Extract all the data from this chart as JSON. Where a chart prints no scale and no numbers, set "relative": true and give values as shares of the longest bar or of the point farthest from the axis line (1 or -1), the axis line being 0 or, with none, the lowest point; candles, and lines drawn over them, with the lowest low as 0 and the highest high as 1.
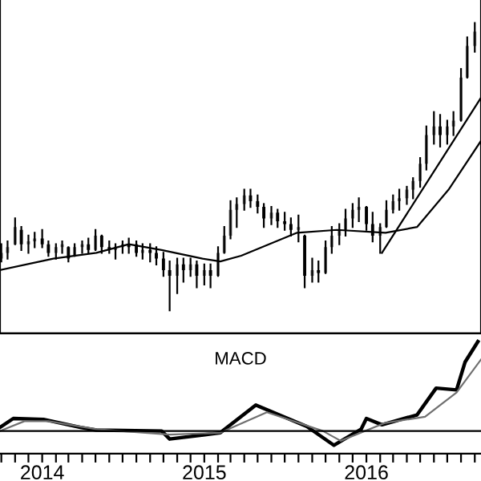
{
  "chart_data": [
    {
      "type": "candlestick",
      "relative": true,
      "tick_labels": false,
      "xlim": [
        "2013-09-28",
        "2016-09-15"
      ],
      "x": [
        "2013-10-01",
        "2013-10-15",
        "2013-11-01",
        "2013-11-15",
        "2013-12-01",
        "2013-12-15",
        "2014-01-01",
        "2014-01-15",
        "2014-02-01",
        "2014-02-15",
        "2014-03-01",
        "2014-03-15",
        "2014-04-01",
        "2014-04-15",
        "2014-05-01",
        "2014-05-15",
        "2014-06-01",
        "2014-06-15",
        "2014-07-01",
        "2014-07-15",
        "2014-08-01",
        "2014-08-15",
        "2014-09-01",
        "2014-09-15",
        "2014-10-01",
        "2014-10-15",
        "2014-11-01",
        "2014-11-15",
        "2014-12-01",
        "2014-12-15",
        "2015-01-01",
        "2015-01-15",
        "2015-02-01",
        "2015-02-15",
        "2015-03-01",
        "2015-03-15",
        "2015-04-01",
        "2015-04-15",
        "2015-05-01",
        "2015-05-15",
        "2015-06-01",
        "2015-06-15",
        "2015-07-01",
        "2015-07-15",
        "2015-08-01",
        "2015-08-15",
        "2015-09-01",
        "2015-09-15",
        "2015-10-01",
        "2015-10-15",
        "2015-11-01",
        "2015-11-15",
        "2015-12-01",
        "2015-12-15",
        "2016-01-01",
        "2016-01-15",
        "2016-02-01",
        "2016-02-15",
        "2016-03-01",
        "2016-03-15",
        "2016-04-01",
        "2016-04-15",
        "2016-05-01",
        "2016-05-15",
        "2016-06-01",
        "2016-06-15",
        "2016-07-01",
        "2016-07-15",
        "2016-08-01",
        "2016-08-15",
        "2016-09-01"
      ],
      "ohlc": [
        [
          0.18,
          0.23,
          0.17,
          0.2
        ],
        [
          0.2,
          0.24,
          0.18,
          0.22
        ],
        [
          0.23,
          0.32,
          0.23,
          0.29
        ],
        [
          0.28,
          0.29,
          0.21,
          0.23
        ],
        [
          0.23,
          0.26,
          0.2,
          0.24
        ],
        [
          0.24,
          0.27,
          0.22,
          0.25
        ],
        [
          0.25,
          0.28,
          0.22,
          0.23
        ],
        [
          0.23,
          0.24,
          0.19,
          0.2
        ],
        [
          0.2,
          0.23,
          0.18,
          0.22
        ],
        [
          0.22,
          0.24,
          0.2,
          0.23
        ],
        [
          0.22,
          0.22,
          0.17,
          0.18
        ],
        [
          0.19,
          0.23,
          0.19,
          0.22
        ],
        [
          0.22,
          0.24,
          0.2,
          0.23
        ],
        [
          0.23,
          0.25,
          0.2,
          0.21
        ],
        [
          0.21,
          0.28,
          0.21,
          0.26
        ],
        [
          0.26,
          0.26,
          0.2,
          0.22
        ],
        [
          0.22,
          0.24,
          0.2,
          0.21
        ],
        [
          0.21,
          0.23,
          0.18,
          0.22
        ],
        [
          0.22,
          0.24,
          0.2,
          0.23
        ],
        [
          0.23,
          0.25,
          0.2,
          0.22
        ],
        [
          0.23,
          0.24,
          0.19,
          0.2
        ],
        [
          0.2,
          0.23,
          0.18,
          0.21
        ],
        [
          0.21,
          0.23,
          0.17,
          0.2
        ],
        [
          0.2,
          0.22,
          0.16,
          0.18
        ],
        [
          0.18,
          0.2,
          0.12,
          0.14
        ],
        [
          0.14,
          0.17,
          0.0,
          0.12
        ],
        [
          0.12,
          0.18,
          0.06,
          0.16
        ],
        [
          0.16,
          0.18,
          0.1,
          0.14
        ],
        [
          0.14,
          0.18,
          0.12,
          0.16
        ],
        [
          0.16,
          0.17,
          0.08,
          0.12
        ],
        [
          0.12,
          0.16,
          0.09,
          0.14
        ],
        [
          0.14,
          0.16,
          0.08,
          0.12
        ],
        [
          0.12,
          0.22,
          0.12,
          0.2
        ],
        [
          0.2,
          0.29,
          0.2,
          0.26
        ],
        [
          0.26,
          0.38,
          0.25,
          0.35
        ],
        [
          0.35,
          0.39,
          0.29,
          0.37
        ],
        [
          0.37,
          0.42,
          0.35,
          0.4
        ],
        [
          0.4,
          0.42,
          0.36,
          0.38
        ],
        [
          0.38,
          0.4,
          0.34,
          0.36
        ],
        [
          0.36,
          0.37,
          0.29,
          0.32
        ],
        [
          0.32,
          0.36,
          0.3,
          0.34
        ],
        [
          0.34,
          0.35,
          0.29,
          0.31
        ],
        [
          0.31,
          0.34,
          0.28,
          0.3
        ],
        [
          0.3,
          0.32,
          0.26,
          0.28
        ],
        [
          0.28,
          0.33,
          0.24,
          0.29
        ],
        [
          0.26,
          0.26,
          0.08,
          0.12
        ],
        [
          0.12,
          0.18,
          0.1,
          0.14
        ],
        [
          0.14,
          0.17,
          0.1,
          0.13
        ],
        [
          0.13,
          0.24,
          0.13,
          0.22
        ],
        [
          0.22,
          0.29,
          0.2,
          0.26
        ],
        [
          0.26,
          0.3,
          0.23,
          0.28
        ],
        [
          0.28,
          0.35,
          0.26,
          0.32
        ],
        [
          0.32,
          0.37,
          0.29,
          0.35
        ],
        [
          0.35,
          0.39,
          0.31,
          0.36
        ],
        [
          0.36,
          0.36,
          0.28,
          0.3
        ],
        [
          0.3,
          0.34,
          0.24,
          0.26
        ],
        [
          0.26,
          0.3,
          0.2,
          0.29
        ],
        [
          0.29,
          0.38,
          0.29,
          0.35
        ],
        [
          0.35,
          0.4,
          0.34,
          0.38
        ],
        [
          0.38,
          0.42,
          0.35,
          0.39
        ],
        [
          0.39,
          0.43,
          0.37,
          0.42
        ],
        [
          0.42,
          0.46,
          0.39,
          0.45
        ],
        [
          0.45,
          0.53,
          0.43,
          0.51
        ],
        [
          0.51,
          0.64,
          0.49,
          0.61
        ],
        [
          0.61,
          0.69,
          0.58,
          0.64
        ],
        [
          0.64,
          0.68,
          0.57,
          0.61
        ],
        [
          0.61,
          0.66,
          0.58,
          0.64
        ],
        [
          0.64,
          0.69,
          0.61,
          0.66
        ],
        [
          0.66,
          0.84,
          0.66,
          0.81
        ],
        [
          0.81,
          0.95,
          0.81,
          0.92
        ],
        [
          0.92,
          1.0,
          0.9,
          0.97
        ]
      ],
      "series": [
        {
          "type": "line",
          "color": "#000000",
          "x": [
            "2013-09-28",
            "2014-01-26",
            "2014-05-03",
            "2014-07-15",
            "2014-09-27",
            "2014-12-28",
            "2015-02-06",
            "2015-03-25",
            "2015-07-29",
            "2015-10-27",
            "2016-02-13",
            "2016-04-24",
            "2016-07-04",
            "2016-09-15"
          ],
          "values": [
            0.14,
            0.18,
            0.2,
            0.23,
            0.21,
            0.18,
            0.17,
            0.19,
            0.27,
            0.28,
            0.27,
            0.29,
            0.42,
            0.59
          ]
        },
        {
          "type": "line",
          "color": "#000000",
          "x": [
            "2016-02-05",
            "2016-09-15"
          ],
          "values": [
            0.2,
            0.74
          ]
        }
      ]
    },
    {
      "type": "line",
      "relative": true,
      "tick_labels": "x",
      "title": "MACD",
      "xlim": [
        "2013-09-28",
        "2016-09-15"
      ],
      "xticks": [
        {
          "value": "2013-10-01",
          "label": null
        },
        {
          "value": "2013-11-01",
          "label": null
        },
        {
          "value": "2013-12-01",
          "label": null
        },
        {
          "value": "2014-01-01",
          "label": "2014"
        },
        {
          "value": "2014-02-01",
          "label": null
        },
        {
          "value": "2014-03-01",
          "label": null
        },
        {
          "value": "2014-04-01",
          "label": null
        },
        {
          "value": "2014-05-01",
          "label": null
        },
        {
          "value": "2014-06-01",
          "label": null
        },
        {
          "value": "2014-07-01",
          "label": null
        },
        {
          "value": "2014-08-01",
          "label": null
        },
        {
          "value": "2014-09-01",
          "label": null
        },
        {
          "value": "2014-10-01",
          "label": null
        },
        {
          "value": "2014-11-01",
          "label": null
        },
        {
          "value": "2014-12-01",
          "label": null
        },
        {
          "value": "2015-01-01",
          "label": "2015"
        },
        {
          "value": "2015-02-01",
          "label": null
        },
        {
          "value": "2015-03-01",
          "label": null
        },
        {
          "value": "2015-04-01",
          "label": null
        },
        {
          "value": "2015-05-01",
          "label": null
        },
        {
          "value": "2015-06-01",
          "label": null
        },
        {
          "value": "2015-07-01",
          "label": null
        },
        {
          "value": "2015-08-01",
          "label": null
        },
        {
          "value": "2015-09-01",
          "label": null
        },
        {
          "value": "2015-10-01",
          "label": null
        },
        {
          "value": "2015-11-01",
          "label": null
        },
        {
          "value": "2015-12-01",
          "label": null
        },
        {
          "value": "2016-01-01",
          "label": "2016"
        },
        {
          "value": "2016-02-01",
          "label": null
        },
        {
          "value": "2016-03-01",
          "label": null
        },
        {
          "value": "2016-04-01",
          "label": null
        },
        {
          "value": "2016-05-01",
          "label": null
        },
        {
          "value": "2016-06-01",
          "label": null
        },
        {
          "value": "2016-07-01",
          "label": null
        },
        {
          "value": "2016-08-01",
          "label": null
        },
        {
          "value": "2016-09-01",
          "label": null
        }
      ],
      "ref_lines": [
        {
          "axis": "y",
          "value": 0,
          "color": "#000000"
        }
      ],
      "series": [
        {
          "color": "#000000",
          "x": [
            "2013-09-28",
            "2013-10-28",
            "2014-01-04",
            "2014-03-28",
            "2014-05-03",
            "2014-09-27",
            "2014-10-15",
            "2015-02-06",
            "2015-04-27",
            "2015-08-20",
            "2015-10-20",
            "2015-12-20",
            "2016-01-01",
            "2016-02-05",
            "2016-04-24",
            "2016-06-06",
            "2016-07-22",
            "2016-08-10",
            "2016-09-08"
          ],
          "values": [
            0.04,
            0.14,
            0.13,
            0.04,
            0.01,
            0.0,
            -0.09,
            -0.02,
            0.29,
            0.05,
            -0.16,
            0.02,
            0.14,
            0.07,
            0.18,
            0.48,
            0.46,
            0.77,
            1.0
          ]
        },
        {
          "color": "#707070",
          "x": [
            "2013-09-28",
            "2013-11-22",
            "2014-01-15",
            "2014-05-03",
            "2014-10-15",
            "2015-02-06",
            "2015-05-22",
            "2015-09-25",
            "2015-11-04",
            "2016-02-12",
            "2016-05-12",
            "2016-07-22",
            "2016-09-15"
          ],
          "values": [
            0.0,
            0.11,
            0.11,
            0.02,
            -0.04,
            -0.02,
            0.21,
            0.0,
            -0.11,
            0.09,
            0.16,
            0.43,
            0.8
          ]
        }
      ]
    }
  ]
}
